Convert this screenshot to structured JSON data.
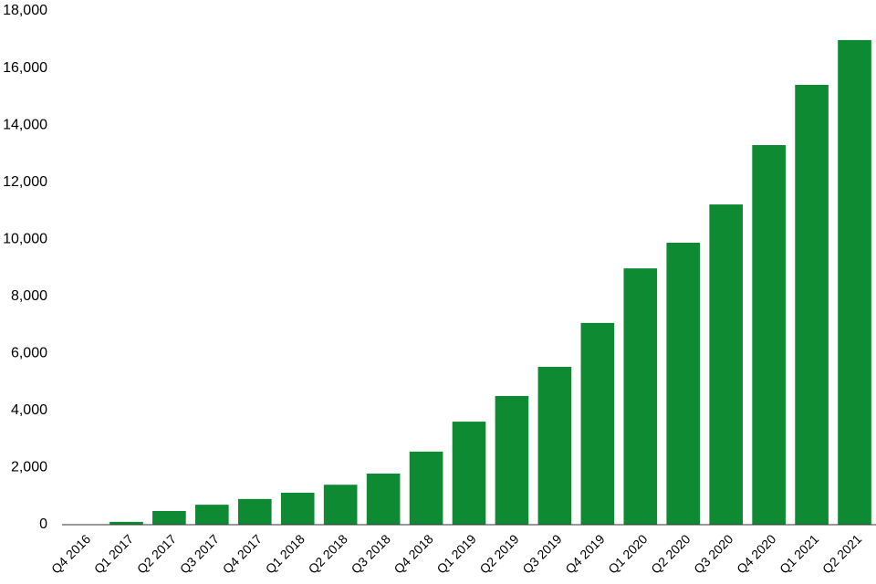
{
  "chart_data": {
    "type": "bar",
    "categories": [
      "Q4 2016",
      "Q1 2017",
      "Q2 2017",
      "Q3 2017",
      "Q4 2017",
      "Q1 2018",
      "Q2 2018",
      "Q3 2018",
      "Q4 2018",
      "Q1 2019",
      "Q2 2019",
      "Q3 2019",
      "Q4 2019",
      "Q1 2020",
      "Q2 2020",
      "Q3 2020",
      "Q4 2020",
      "Q1 2021",
      "Q2 2021"
    ],
    "values": [
      0,
      100,
      480,
      700,
      900,
      1120,
      1400,
      1790,
      2560,
      3610,
      4510,
      5530,
      7070,
      8980,
      9880,
      11220,
      13300,
      15410,
      16980
    ],
    "color": "#0e8a32",
    "ylim": [
      0,
      18000
    ],
    "yticks": [
      {
        "value": 0,
        "label": "0"
      },
      {
        "value": 2000,
        "label": "2,000"
      },
      {
        "value": 4000,
        "label": "4,000"
      },
      {
        "value": 6000,
        "label": "6,000"
      },
      {
        "value": 8000,
        "label": "8,000"
      },
      {
        "value": 10000,
        "label": "10,000"
      },
      {
        "value": 12000,
        "label": "12,000"
      },
      {
        "value": 14000,
        "label": "14,000"
      },
      {
        "value": 16000,
        "label": "16,000"
      },
      {
        "value": 18000,
        "label": "18,000"
      }
    ],
    "grid": false
  }
}
